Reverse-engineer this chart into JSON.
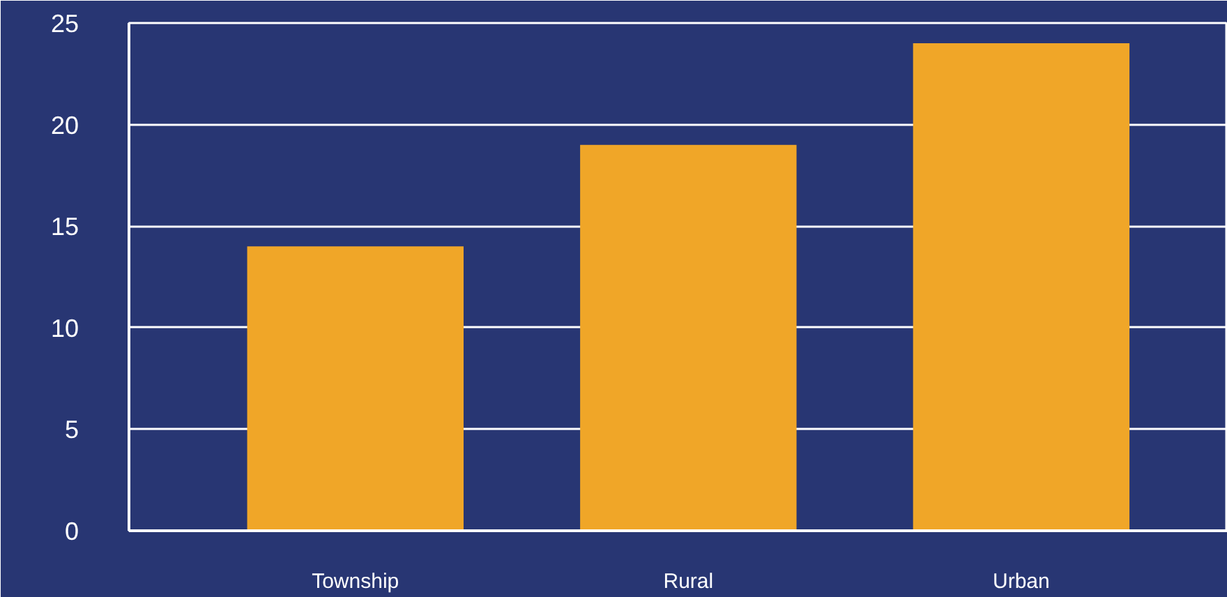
{
  "chart_data": {
    "type": "bar",
    "categories": [
      "Township",
      "Rural",
      "Urban"
    ],
    "values": [
      14,
      19,
      24
    ],
    "color": "#f0a628",
    "ylim": [
      0,
      25
    ],
    "yticks": [
      0,
      5,
      10,
      15,
      20,
      25
    ],
    "grid": "y"
  }
}
